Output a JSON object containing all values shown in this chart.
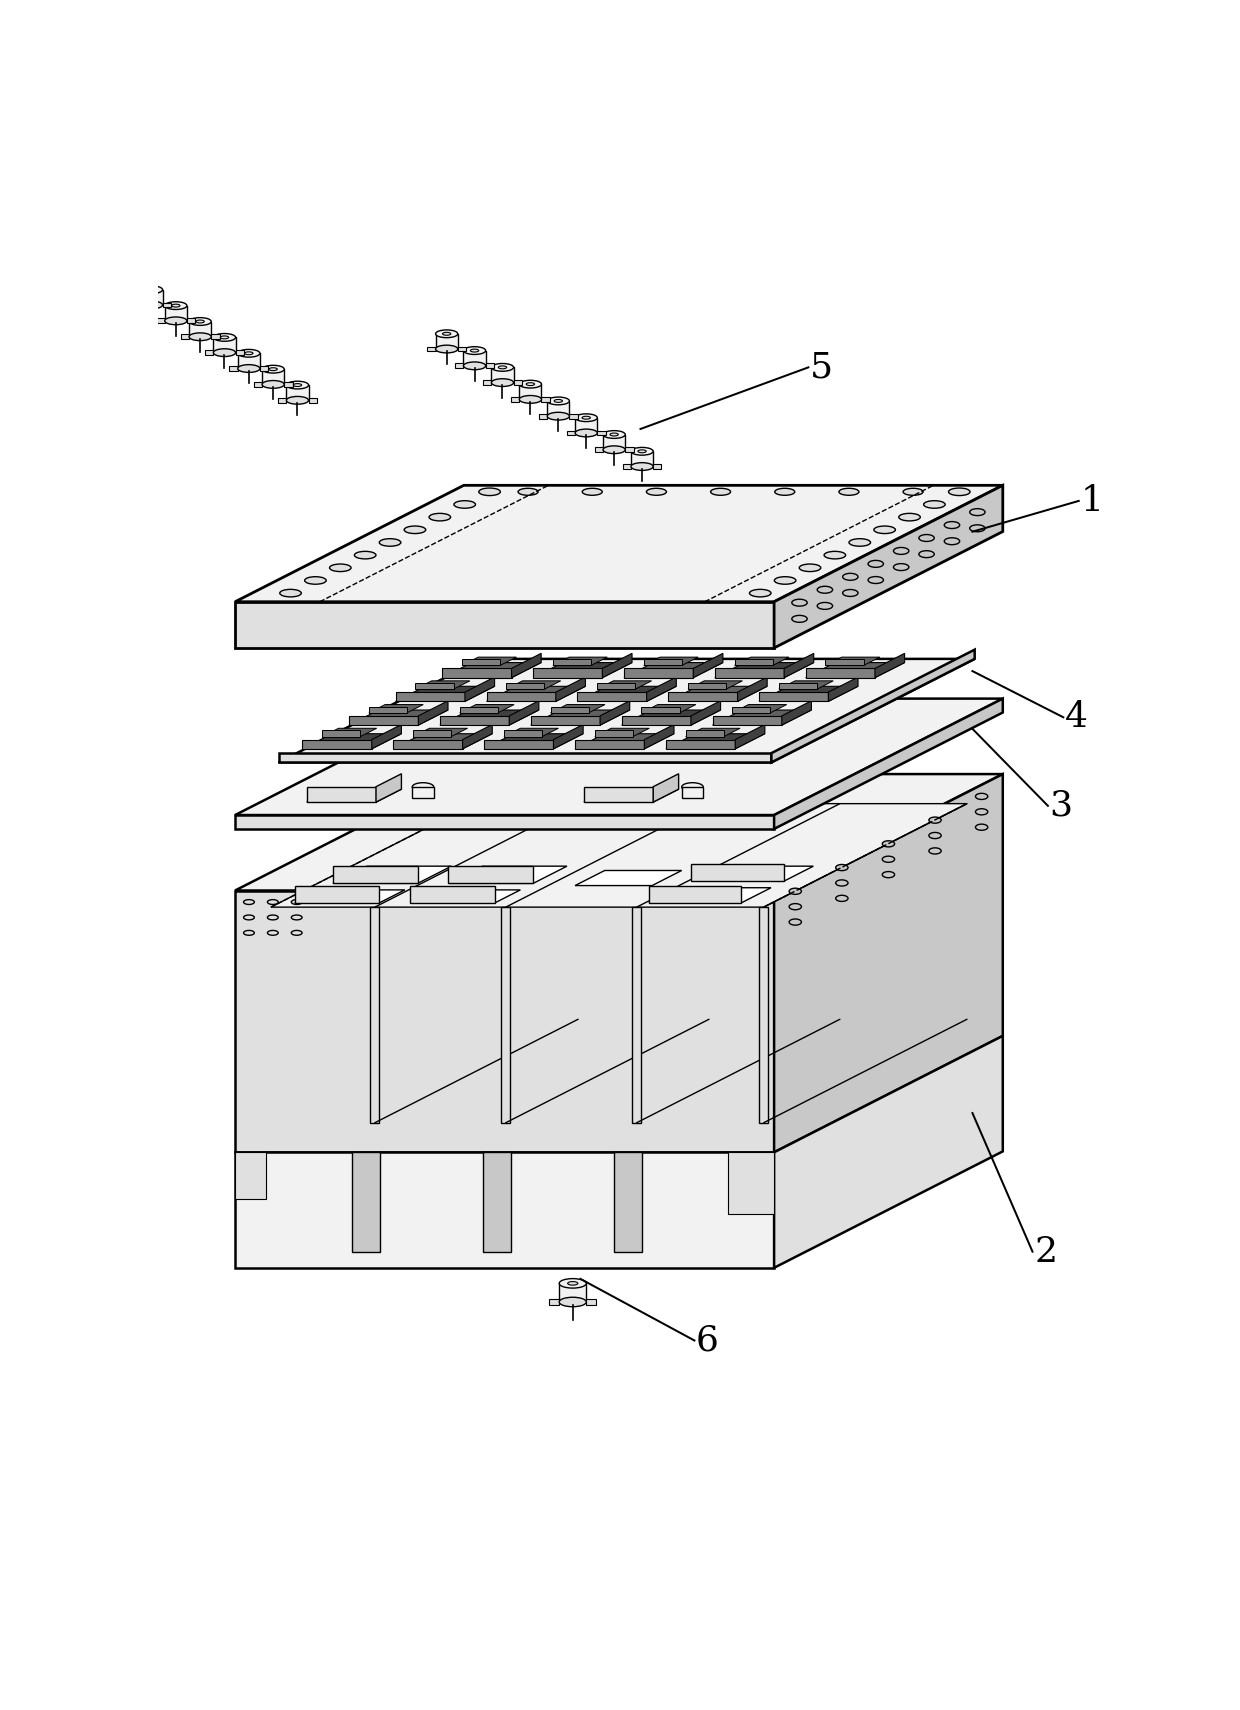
{
  "bg_color": "#ffffff",
  "lc": "#000000",
  "lw": 1.8,
  "lw_thin": 1.0,
  "lw_thick": 2.0,
  "fc_white": "#ffffff",
  "fc_light": "#f2f2f2",
  "fc_mid": "#e0e0e0",
  "fc_dark": "#c8c8c8",
  "fc_darker": "#b0b0b0",
  "fc_chip_dark": "#404040",
  "fc_chip_mid": "#606060",
  "fc_chip_light": "#808080",
  "label_fs": 26,
  "note_fs": 14,
  "proj": {
    "sx": 0.55,
    "sy": 0.28
  }
}
